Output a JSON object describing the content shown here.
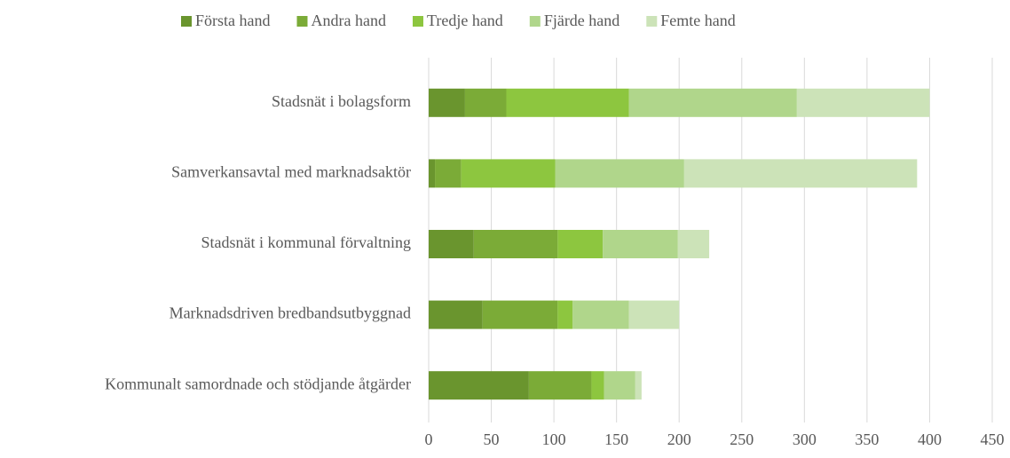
{
  "chart_data": {
    "type": "stacked-barh",
    "categories": [
      "Stadsnät i bolagsform",
      "Samverkansavtal med marknadsaktör",
      "Stadsnät i kommunal förvaltning",
      "Marknadsdriven bredbandsutbyggnad",
      "Kommunalt samordnade och stödjande åtgärder"
    ],
    "series": [
      {
        "name": "Första hand",
        "color": "#6a952e",
        "values": [
          29,
          5,
          36,
          43,
          80
        ]
      },
      {
        "name": "Andra hand",
        "color": "#7bab37",
        "values": [
          33,
          21,
          67,
          60,
          50
        ]
      },
      {
        "name": "Tredje hand",
        "color": "#8dc63f",
        "values": [
          98,
          75,
          36,
          12,
          10
        ]
      },
      {
        "name": "Fjärde hand",
        "color": "#b0d68b",
        "values": [
          134,
          103,
          60,
          45,
          25
        ]
      },
      {
        "name": "Femte hand",
        "color": "#cce3b8",
        "values": [
          106,
          186,
          25,
          40,
          5
        ]
      }
    ],
    "xlim": [
      0,
      450
    ],
    "xticks": [
      0,
      50,
      100,
      150,
      200,
      250,
      300,
      350,
      400,
      450
    ],
    "grid": true,
    "legend": "top"
  }
}
